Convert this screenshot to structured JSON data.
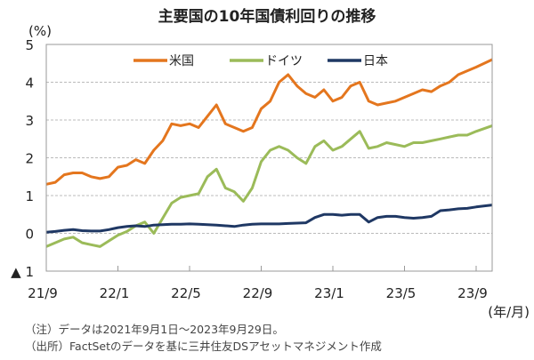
{
  "chart_data": {
    "type": "line",
    "title": "主要国の10年国債利回りの推移",
    "ylabel": "(%)",
    "xlabel": "(年/月)",
    "ylim": [
      -1,
      5
    ],
    "yticks": [
      5,
      4,
      3,
      2,
      1,
      0,
      -1
    ],
    "ytick_labels": [
      "5",
      "4",
      "3",
      "2",
      "1",
      "0",
      "▲ 1"
    ],
    "xticks": [
      0,
      4,
      8,
      12,
      16,
      20,
      24
    ],
    "xtick_labels": [
      "21/9",
      "22/1",
      "22/5",
      "22/9",
      "23/1",
      "23/5",
      "23/9"
    ],
    "x_unit": "months since 2021/9",
    "grid": true,
    "legend_position": "top",
    "x": [
      0,
      0.5,
      1,
      1.5,
      2,
      2.5,
      3,
      3.5,
      4,
      4.5,
      5,
      5.5,
      6,
      6.5,
      7,
      7.5,
      8,
      8.5,
      9,
      9.5,
      10,
      10.5,
      11,
      11.5,
      12,
      12.5,
      13,
      13.5,
      14,
      14.5,
      15,
      15.5,
      16,
      16.5,
      17,
      17.5,
      18,
      18.5,
      19,
      19.5,
      20,
      20.5,
      21,
      21.5,
      22,
      22.5,
      23,
      23.5,
      24,
      24.9
    ],
    "series": [
      {
        "name": "米国",
        "color": "#E4761E",
        "values": [
          1.3,
          1.35,
          1.55,
          1.6,
          1.6,
          1.5,
          1.45,
          1.5,
          1.75,
          1.8,
          1.95,
          1.85,
          2.2,
          2.45,
          2.9,
          2.85,
          2.9,
          2.8,
          3.1,
          3.4,
          2.9,
          2.8,
          2.7,
          2.8,
          3.3,
          3.5,
          4.0,
          4.2,
          3.9,
          3.7,
          3.6,
          3.8,
          3.5,
          3.6,
          3.9,
          4.0,
          3.5,
          3.4,
          3.45,
          3.5,
          3.6,
          3.7,
          3.8,
          3.75,
          3.9,
          4.0,
          4.2,
          4.3,
          4.4,
          4.6
        ]
      },
      {
        "name": "ドイツ",
        "color": "#9BBB59",
        "values": [
          -0.35,
          -0.25,
          -0.15,
          -0.1,
          -0.25,
          -0.3,
          -0.35,
          -0.2,
          -0.05,
          0.05,
          0.2,
          0.3,
          0.0,
          0.4,
          0.8,
          0.95,
          1.0,
          1.05,
          1.5,
          1.7,
          1.2,
          1.1,
          0.85,
          1.2,
          1.9,
          2.2,
          2.3,
          2.2,
          2.0,
          1.85,
          2.3,
          2.45,
          2.2,
          2.3,
          2.5,
          2.7,
          2.25,
          2.3,
          2.4,
          2.35,
          2.3,
          2.4,
          2.4,
          2.45,
          2.5,
          2.55,
          2.6,
          2.6,
          2.7,
          2.85
        ]
      },
      {
        "name": "日本",
        "color": "#1F3864",
        "values": [
          0.03,
          0.05,
          0.08,
          0.1,
          0.07,
          0.06,
          0.06,
          0.1,
          0.15,
          0.18,
          0.2,
          0.18,
          0.22,
          0.23,
          0.24,
          0.24,
          0.25,
          0.24,
          0.23,
          0.22,
          0.2,
          0.18,
          0.22,
          0.24,
          0.25,
          0.25,
          0.25,
          0.26,
          0.27,
          0.28,
          0.42,
          0.5,
          0.5,
          0.48,
          0.5,
          0.5,
          0.3,
          0.42,
          0.45,
          0.45,
          0.42,
          0.4,
          0.42,
          0.45,
          0.6,
          0.62,
          0.65,
          0.66,
          0.7,
          0.75
        ]
      }
    ]
  },
  "notes": {
    "note": "（注）データは2021年9月1日～2023年9月29日。",
    "source": "（出所）FactSetのデータを基に三井住友DSアセットマネジメント作成"
  }
}
